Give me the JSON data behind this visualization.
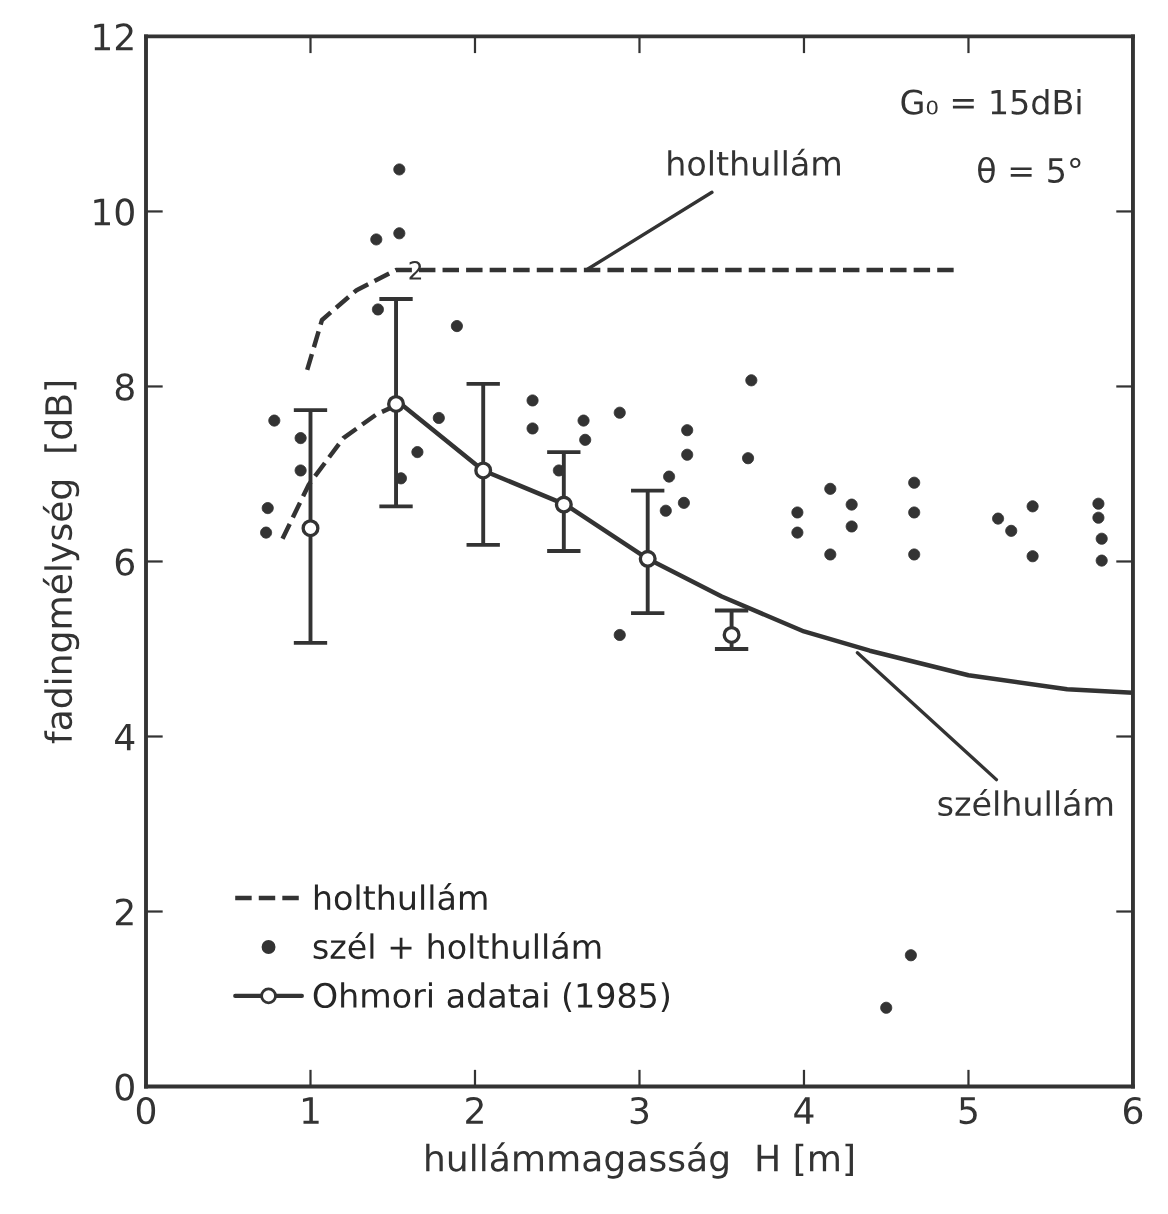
{
  "chart_data": {
    "type": "scatter",
    "xlabel": "hullámmagasság  H [m]",
    "ylabel": "fadingmélység  [dB]",
    "xlim": [
      0,
      6
    ],
    "ylim": [
      0,
      12
    ],
    "xticks": [
      0,
      1,
      2,
      3,
      4,
      5,
      6
    ],
    "yticks": [
      0,
      2,
      4,
      6,
      8,
      10,
      12
    ],
    "grid": false,
    "legend": "bottom left",
    "annotations": [
      "G₀ = 15dBi",
      "θ = 5°",
      {
        "text": "holthullám",
        "x": 2.65,
        "y": 9.3
      },
      {
        "text": "szélhullám",
        "x": 4.3,
        "y": 5.0
      },
      {
        "text": "2",
        "x": 1.54,
        "y": 9.3
      }
    ],
    "series": [
      {
        "name": "holthullám",
        "type": "line",
        "line_style": "dashed",
        "marker": "none",
        "color": "#333333",
        "x": [
          0.98,
          1.07,
          1.28,
          1.52,
          3.0,
          4.95
        ],
        "values": [
          8.19,
          8.76,
          9.1,
          9.33,
          9.33,
          9.33
        ]
      },
      {
        "type": "line",
        "line_style": "dashed",
        "marker": "none",
        "color": "#333333",
        "x": [
          0.83,
          0.99,
          1.2,
          1.4,
          1.54
        ],
        "values": [
          6.26,
          6.88,
          7.41,
          7.68,
          7.8
        ]
      },
      {
        "type": "line",
        "line_style": "solid",
        "marker": "none",
        "color": "#333333",
        "x": [
          1.55,
          2.05,
          2.55,
          3.05,
          3.5,
          4.0,
          4.4,
          5.0,
          5.6,
          6.0
        ],
        "values": [
          7.8,
          7.04,
          6.65,
          6.03,
          5.6,
          5.2,
          4.98,
          4.7,
          4.54,
          4.5
        ]
      },
      {
        "name": "szél + holthullám",
        "marker": "circle",
        "color": "#333333",
        "x": [
          1.54,
          1.4,
          1.54,
          1.41,
          1.89,
          0.78,
          0.94,
          0.94,
          0.74,
          0.73,
          1.78,
          1.65,
          1.55,
          2.35,
          2.35,
          2.66,
          2.67,
          2.88,
          2.51,
          3.16,
          2.88,
          3.29,
          3.29,
          3.18,
          3.27,
          3.68,
          3.66,
          3.96,
          3.96,
          4.16,
          4.29,
          4.29,
          4.16,
          4.67,
          4.67,
          4.67,
          5.18,
          5.26,
          5.39,
          5.39,
          5.79,
          5.79,
          5.81,
          5.81,
          4.65,
          4.5
        ],
        "values": [
          10.48,
          9.68,
          9.75,
          8.88,
          8.69,
          7.61,
          7.41,
          7.04,
          6.61,
          6.33,
          7.64,
          7.25,
          6.95,
          7.84,
          7.52,
          7.61,
          7.39,
          7.7,
          7.04,
          6.58,
          5.16,
          7.5,
          7.22,
          6.97,
          6.67,
          8.07,
          7.18,
          6.56,
          6.33,
          6.83,
          6.65,
          6.4,
          6.08,
          6.9,
          6.56,
          6.08,
          6.49,
          6.35,
          6.63,
          6.06,
          6.66,
          6.5,
          6.26,
          6.01,
          1.5,
          0.9
        ]
      },
      {
        "name": "Ohmori adatai (1985)",
        "marker": "circle",
        "color": "#333333",
        "x": [
          1.0,
          1.52,
          2.05,
          2.54,
          3.05,
          3.56
        ],
        "values": [
          6.38,
          7.8,
          7.04,
          6.65,
          6.03,
          5.16
        ],
        "errors": [
          [
            5.07,
            7.73
          ],
          [
            6.63,
            9.0
          ],
          [
            6.19,
            8.03
          ],
          [
            6.12,
            7.25
          ],
          [
            5.41,
            6.81
          ],
          [
            5.0,
            5.44
          ]
        ]
      }
    ]
  }
}
